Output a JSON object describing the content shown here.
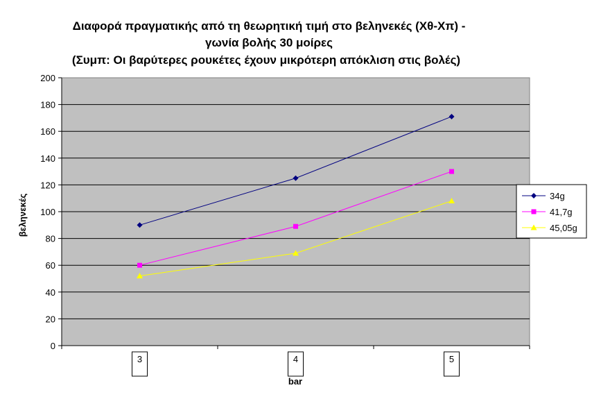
{
  "chart_data": {
    "type": "line",
    "title_lines": [
      "Διαφορά πραγματικής από τη θεωρητική τιμή στο βεληνεκές (Χθ-Χπ) -",
      "γωνία βολής 30 μοίρες",
      "(Συμπ: Οι βαρύτερες ρουκέτες έχουν μικρότερη απόκλιση στις βολές)"
    ],
    "xlabel": "bar",
    "ylabel": "βεληνεκές",
    "categories": [
      "3",
      "4",
      "5"
    ],
    "ylim": [
      0,
      200
    ],
    "yticks": [
      0,
      20,
      40,
      60,
      80,
      100,
      120,
      140,
      160,
      180,
      200
    ],
    "grid": true,
    "plot_background": "#c0c0c0",
    "legend_position": "right",
    "series": [
      {
        "name": "34g",
        "values": [
          90,
          125,
          171
        ],
        "color": "#000080",
        "marker": "diamond"
      },
      {
        "name": "41,7g",
        "values": [
          60,
          89,
          130
        ],
        "color": "#ff00ff",
        "marker": "square"
      },
      {
        "name": "45,05g",
        "values": [
          52,
          69,
          108
        ],
        "color": "#ffff00",
        "marker": "triangle"
      }
    ]
  }
}
